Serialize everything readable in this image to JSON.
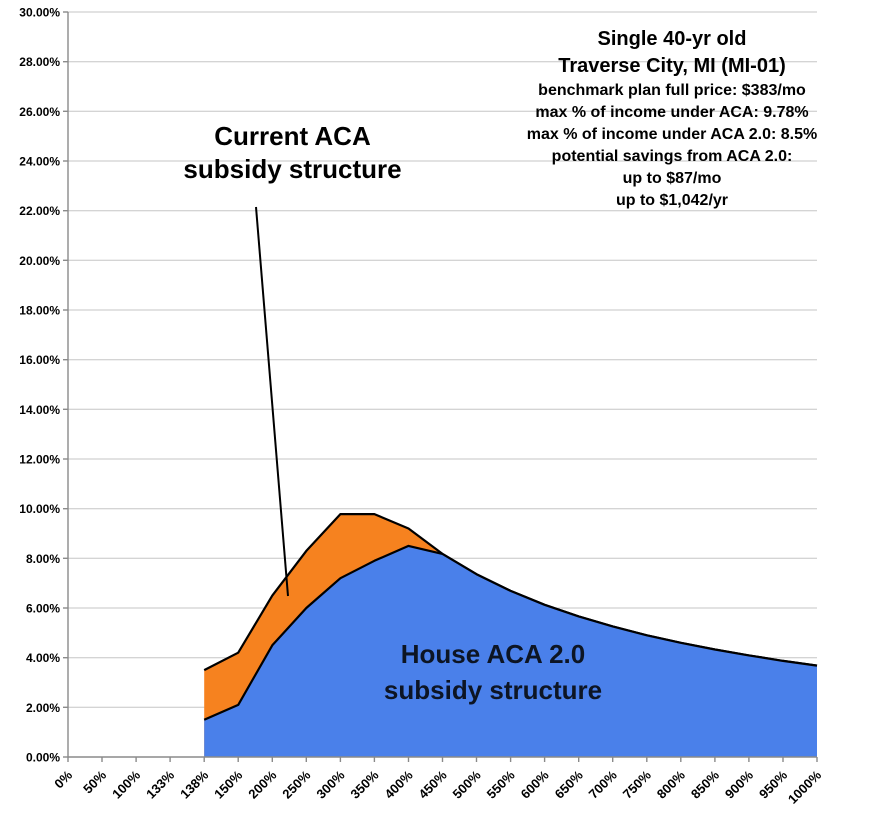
{
  "chart_data": {
    "type": "area",
    "categories": [
      "0%",
      "50%",
      "100%",
      "133%",
      "138%",
      "150%",
      "200%",
      "250%",
      "300%",
      "350%",
      "400%",
      "450%",
      "500%",
      "550%",
      "600%",
      "650%",
      "700%",
      "750%",
      "800%",
      "850%",
      "900%",
      "950%",
      "1000%"
    ],
    "series": [
      {
        "name": "Current ACA subsidy structure",
        "color": "#F6821F",
        "line_color": "#000000",
        "values": [
          null,
          null,
          null,
          null,
          3.5,
          4.2,
          6.5,
          8.3,
          9.78,
          9.78,
          9.2,
          8.18,
          7.36,
          6.69,
          6.13,
          5.66,
          5.26,
          4.9,
          4.6,
          4.33,
          4.09,
          3.87,
          3.68
        ]
      },
      {
        "name": "House ACA 2.0 subsidy structure",
        "color": "#4A80EA",
        "line_color": "#000000",
        "values": [
          null,
          null,
          null,
          null,
          1.5,
          2.1,
          4.5,
          6.0,
          7.2,
          7.9,
          8.5,
          8.18,
          7.36,
          6.69,
          6.13,
          5.66,
          5.26,
          4.9,
          4.6,
          4.33,
          4.09,
          3.87,
          3.68
        ]
      }
    ],
    "ylim": [
      0,
      30
    ],
    "ytick_step": 2,
    "ytick_labels": [
      "0.00%",
      "2.00%",
      "4.00%",
      "6.00%",
      "8.00%",
      "10.00%",
      "12.00%",
      "14.00%",
      "16.00%",
      "18.00%",
      "20.00%",
      "22.00%",
      "24.00%",
      "26.00%",
      "28.00%",
      "30.00%"
    ],
    "grid": true,
    "grid_color": "#c6c6c6",
    "axis_color": "#8a8a8a",
    "legend": "none"
  },
  "annotations": {
    "current_label": {
      "line1": "Current ACA",
      "line2": "subsidy structure"
    },
    "house_label": {
      "line1": "House ACA 2.0",
      "line2": "subsidy structure"
    },
    "info": {
      "lines": [
        "Single 40-yr old",
        "Traverse City, MI (MI-01)",
        "benchmark plan full price: $383/mo",
        "max % of income under ACA: 9.78%",
        "max % of income under ACA 2.0: 8.5%",
        "potential savings from ACA 2.0:",
        "up to $87/mo",
        "up to $1,042/yr"
      ]
    }
  }
}
